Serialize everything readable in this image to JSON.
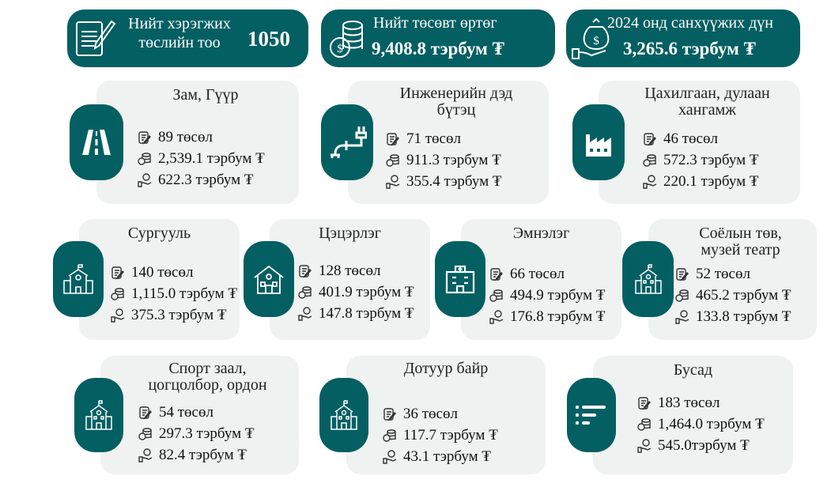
{
  "summary": {
    "projects": {
      "label_line1": "Нийт хэрэгжих",
      "label_line2": "төслийн тоо",
      "value": "1050",
      "icon": "contract-pen-icon"
    },
    "budget": {
      "label": "Нийт төсөвт өртөг",
      "value": "9,408.8 тэрбум ₮",
      "icon": "coins-stack-icon"
    },
    "funding2024": {
      "label": "2024 онд санхүүжих дүн",
      "value": "3,265.6 тэрбум ₮",
      "icon": "money-bag-hand-icon"
    }
  },
  "colors": {
    "accent": "#035f62",
    "card_bg": "#f0f1f1"
  },
  "sectors": [
    {
      "title": "Зам, Гүүр",
      "projects": "89 төсөл",
      "budget": "2,539.1 тэрбум ₮",
      "funding": "622.3 тэрбум ₮",
      "icon": "road-icon"
    },
    {
      "title": "Инженерийн дэд бүтэц",
      "projects": "71 төсөл",
      "budget": "911.3 тэрбум ₮",
      "funding": "355.4 тэрбум ₮",
      "icon": "pipe-icon"
    },
    {
      "title": "Цахилгаан, дулаан хангамж",
      "projects": "46 төсөл",
      "budget": "572.3 тэрбум ₮",
      "funding": "220.1 тэрбум ₮",
      "icon": "factory-icon"
    },
    {
      "title": "Сургууль",
      "projects": "140 төсөл",
      "budget": "1,115.0 тэрбум ₮",
      "funding": "375.3 тэрбум ₮",
      "icon": "school-icon"
    },
    {
      "title": "Цэцэрлэг",
      "projects": "128 төсөл",
      "budget": "401.9 тэрбум ₮",
      "funding": "147.8 тэрбум ₮",
      "icon": "kindergarten-icon"
    },
    {
      "title": "Эмнэлэг",
      "projects": "66 төсөл",
      "budget": "494.9 тэрбум ₮",
      "funding": "176.8 тэрбум ₮",
      "icon": "hospital-icon"
    },
    {
      "title": "Соёлын төв, музей театр",
      "projects": "52 төсөл",
      "budget": "465.2 тэрбум ₮",
      "funding": "133.8 тэрбум ₮",
      "icon": "building-icon"
    },
    {
      "title": "Спорт заал, цогцолбор, ордон",
      "projects": "54 төсөл",
      "budget": "297.3 тэрбум ₮",
      "funding": "82.4 тэрбум ₮",
      "icon": "building-icon"
    },
    {
      "title": "Дотуур байр",
      "projects": "36 төсөл",
      "budget": "117.7 тэрбум ₮",
      "funding": "43.1 тэрбум ₮",
      "icon": "building-icon"
    },
    {
      "title": "Бусад",
      "projects": "183 төсөл",
      "budget": "1,464.0 тэрбум ₮",
      "funding": "545.0тэрбум ₮",
      "icon": "list-icon"
    }
  ]
}
